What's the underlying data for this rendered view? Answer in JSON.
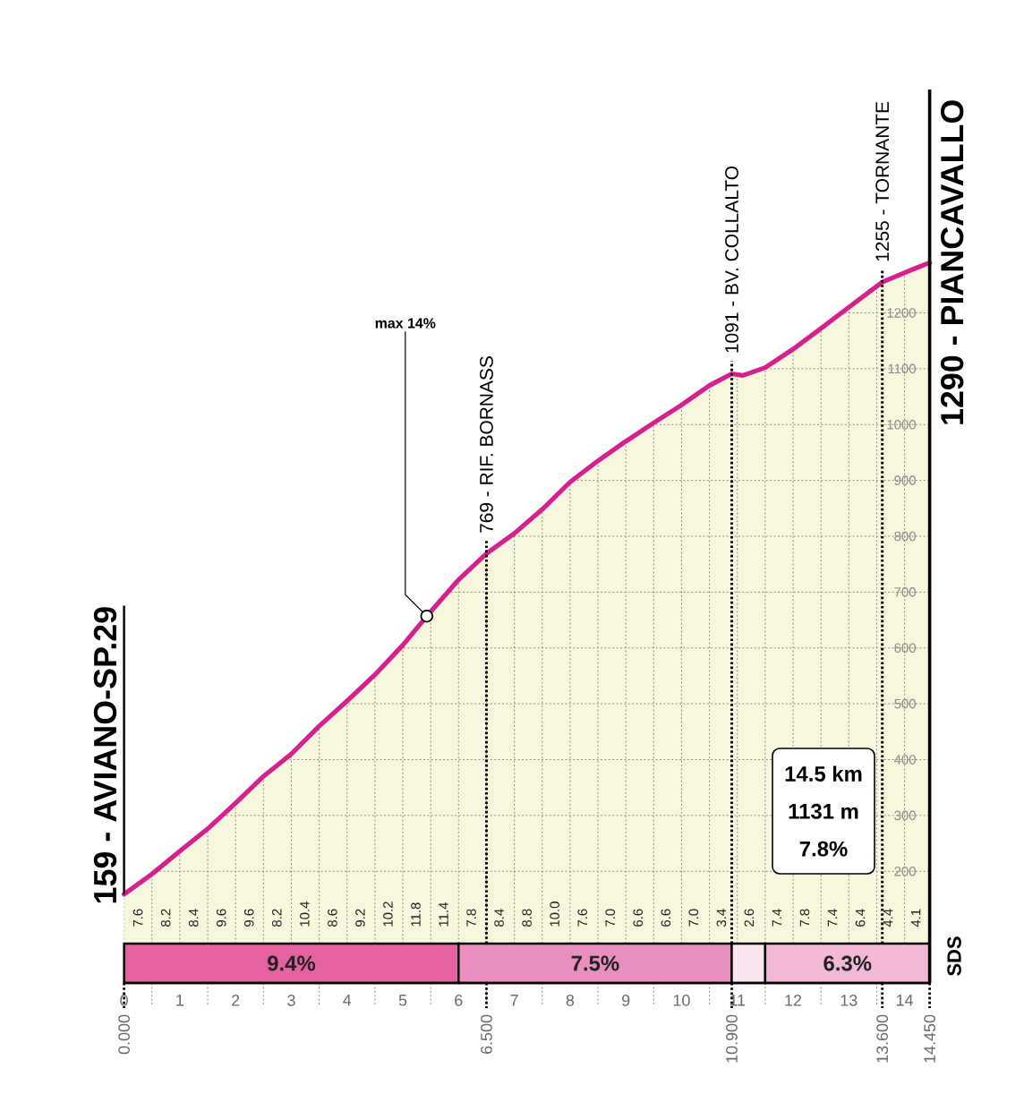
{
  "chart_data": [
    {
      "type": "area",
      "x": [
        0,
        0.5,
        1,
        1.5,
        2,
        2.5,
        3,
        3.5,
        4,
        4.5,
        5,
        5.5,
        6,
        6.5,
        7,
        7.5,
        8,
        8.5,
        9,
        9.5,
        10,
        10.5,
        10.9,
        11.1,
        11.5,
        12,
        12.5,
        13,
        13.6,
        14,
        14.45
      ],
      "values": [
        159,
        195,
        236,
        276,
        322,
        370,
        410,
        460,
        505,
        552,
        605,
        665,
        722,
        769,
        805,
        848,
        897,
        935,
        970,
        1003,
        1035,
        1070,
        1091,
        1088,
        1102,
        1135,
        1172,
        1210,
        1255,
        1272,
        1290
      ],
      "color": "#d5208e",
      "xlim": [
        0,
        14.45
      ],
      "ylim": [
        0,
        1600
      ],
      "xticks": [
        0,
        {
          "value": 0.5,
          "label": null
        },
        1,
        {
          "value": 1.5,
          "label": null
        },
        2,
        {
          "value": 2.5,
          "label": null
        },
        3,
        {
          "value": 3.5,
          "label": null
        },
        4,
        {
          "value": 4.5,
          "label": null
        },
        5,
        {
          "value": 5.5,
          "label": null
        },
        6,
        {
          "value": 6.5,
          "label": null
        },
        7,
        {
          "value": 7.5,
          "label": null
        },
        8,
        {
          "value": 8.5,
          "label": null
        },
        9,
        {
          "value": 9.5,
          "label": null
        },
        10,
        {
          "value": 10.5,
          "label": null
        },
        11,
        {
          "value": 11.5,
          "label": null
        },
        12,
        {
          "value": 12.5,
          "label": null
        },
        13,
        {
          "value": 13.5,
          "label": null
        },
        14
      ],
      "yticks": [
        200,
        300,
        400,
        500,
        600,
        700,
        800,
        900,
        1000,
        1100,
        1200
      ],
      "grid": true,
      "x2lim": [
        0,
        14.45
      ],
      "x2ticks": [
        {
          "value": 0,
          "label": "0.000"
        },
        {
          "value": 6.5,
          "label": "6.500"
        },
        {
          "value": 10.9,
          "label": "10.900"
        },
        {
          "value": 13.6,
          "label": "13.600"
        },
        {
          "value": 14.45,
          "label": "14.450"
        }
      ],
      "bands": [
        {
          "axis": "x",
          "from": 0,
          "to": 6,
          "label": "9.4%",
          "color": "#e3629f"
        },
        {
          "axis": "x",
          "from": 6,
          "to": 10.9,
          "label": "7.5%",
          "color": "#e98fbf"
        },
        {
          "axis": "x",
          "from": 10.9,
          "to": 11.5,
          "color": "#fbe5f0"
        },
        {
          "axis": "x",
          "from": 11.5,
          "to": 14.45,
          "label": "6.3%",
          "color": "#f2b9d6"
        }
      ],
      "ref_lines": [
        {
          "axis": "x",
          "value": 0,
          "label": "159 - AVIANO-SP.29",
          "line_style": "solid"
        },
        {
          "axis": "x",
          "value": 6.5,
          "label": "769 - RIF. BORNASS",
          "line_style": "dotted"
        },
        {
          "axis": "x",
          "value": 10.9,
          "label": "1091 - BV. COLLALTO",
          "line_style": "dotted"
        },
        {
          "axis": "x",
          "value": 13.6,
          "label": "1255 - TORNANTE",
          "line_style": "dotted"
        }
      ],
      "annotations": [
        "7.6",
        "8.2",
        "8.4",
        "9.6",
        "9.6",
        "8.2",
        "10.4",
        "8.6",
        "9.2",
        "10.2",
        "11.8",
        "11.4",
        "7.8",
        "8.4",
        "8.8",
        "10.0",
        "7.6",
        "7.0",
        "6.6",
        "6.6",
        "7.0",
        "3.4",
        "2.6",
        "7.4",
        "7.8",
        "7.4",
        "6.4",
        "4.4",
        "4.1",
        {
          "text": "max 14%",
          "x": 5.43,
          "y": 657
        },
        {
          "text": "1290 - PIANCAVALLO",
          "x": 14.45,
          "y": 1290
        }
      ]
    },
    {
      "type": "other",
      "annotations": [
        "14.5 km",
        "1131 m",
        "7.8%"
      ]
    },
    {
      "type": "other",
      "annotations": [
        "SDS"
      ]
    }
  ]
}
